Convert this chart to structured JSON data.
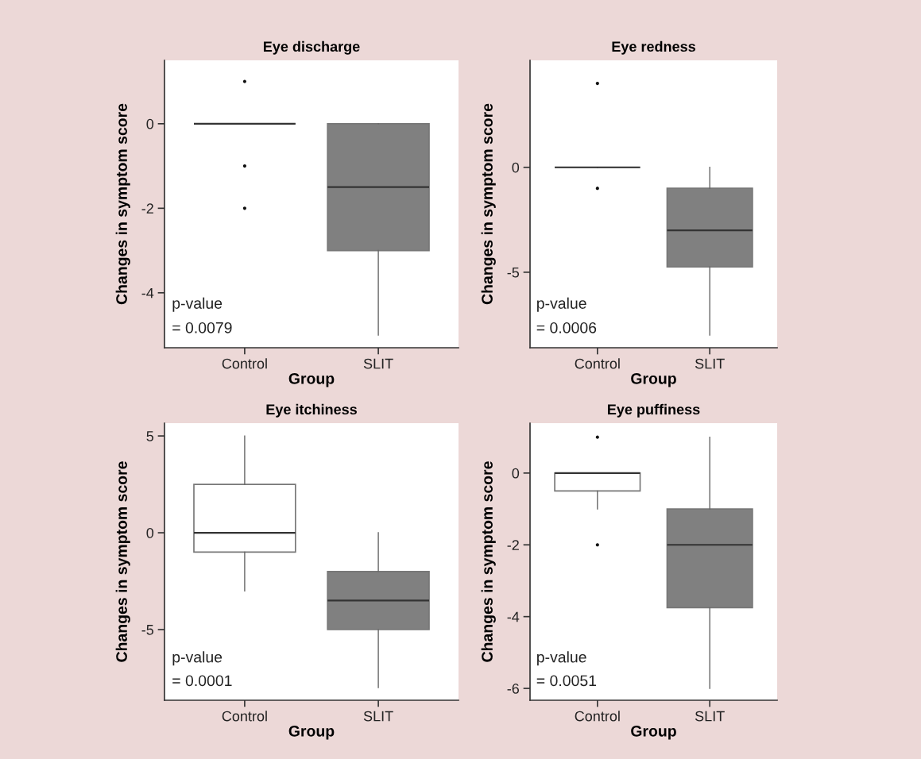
{
  "chart_data": [
    {
      "type": "box",
      "title": "Eye discharge",
      "xlabel": "Group",
      "ylabel": "Changes in symptom score",
      "categories": [
        "Control",
        "SLIT"
      ],
      "colors": [
        "#777777",
        "#808080"
      ],
      "boxes": [
        {
          "low": 0,
          "q1": 0,
          "median": 0,
          "q3": 0,
          "high": 0,
          "outliers": [
            1,
            -1,
            -2
          ]
        },
        {
          "low": -5,
          "q1": -3,
          "median": -1.5,
          "q3": 0,
          "high": 0
        }
      ],
      "ylim": [
        -5.3,
        1.5
      ],
      "yticks": [
        -4,
        -2,
        0
      ],
      "annotations": [
        "p-value",
        "= 0.0079"
      ]
    },
    {
      "type": "box",
      "title": "Eye redness",
      "xlabel": "Group",
      "ylabel": "Changes in symptom score",
      "categories": [
        "Control",
        "SLIT"
      ],
      "colors": [
        "#777777",
        "#808080"
      ],
      "boxes": [
        {
          "low": 0,
          "q1": 0,
          "median": 0,
          "q3": 0,
          "high": 0,
          "outliers": [
            4,
            -1
          ]
        },
        {
          "low": -8,
          "q1": -4.75,
          "median": -3,
          "q3": -1,
          "high": 0
        }
      ],
      "ylim": [
        -8.6,
        5.1
      ],
      "yticks": [
        -5,
        0
      ],
      "annotations": [
        "p-value",
        "= 0.0006"
      ]
    },
    {
      "type": "box",
      "title": "Eye itchiness",
      "xlabel": "Group",
      "ylabel": "Changes in symptom score",
      "categories": [
        "Control",
        "SLIT"
      ],
      "colors": [
        "#ffffff",
        "#808080"
      ],
      "boxes": [
        {
          "low": -3,
          "q1": -1,
          "median": 0,
          "q3": 2.5,
          "high": 5
        },
        {
          "low": -8,
          "q1": -5,
          "median": -3.5,
          "q3": -2,
          "high": 0
        }
      ],
      "ylim": [
        -8.65,
        5.66
      ],
      "yticks": [
        -5,
        0,
        5
      ],
      "annotations": [
        "p-value",
        "= 0.0001"
      ]
    },
    {
      "type": "box",
      "title": "Eye puffiness",
      "xlabel": "Group",
      "ylabel": "Changes in symptom score",
      "categories": [
        "Control",
        "SLIT"
      ],
      "colors": [
        "#ffffff",
        "#808080"
      ],
      "boxes": [
        {
          "low": -1,
          "q1": -0.5,
          "median": 0,
          "q3": 0,
          "high": 0,
          "outliers": [
            1,
            -2
          ]
        },
        {
          "low": -6,
          "q1": -3.75,
          "median": -2,
          "q3": -1,
          "high": 1
        }
      ],
      "ylim": [
        -6.33,
        1.39
      ],
      "yticks": [
        -6,
        -4,
        -2,
        0
      ],
      "annotations": [
        "p-value",
        "= 0.0051"
      ]
    }
  ]
}
